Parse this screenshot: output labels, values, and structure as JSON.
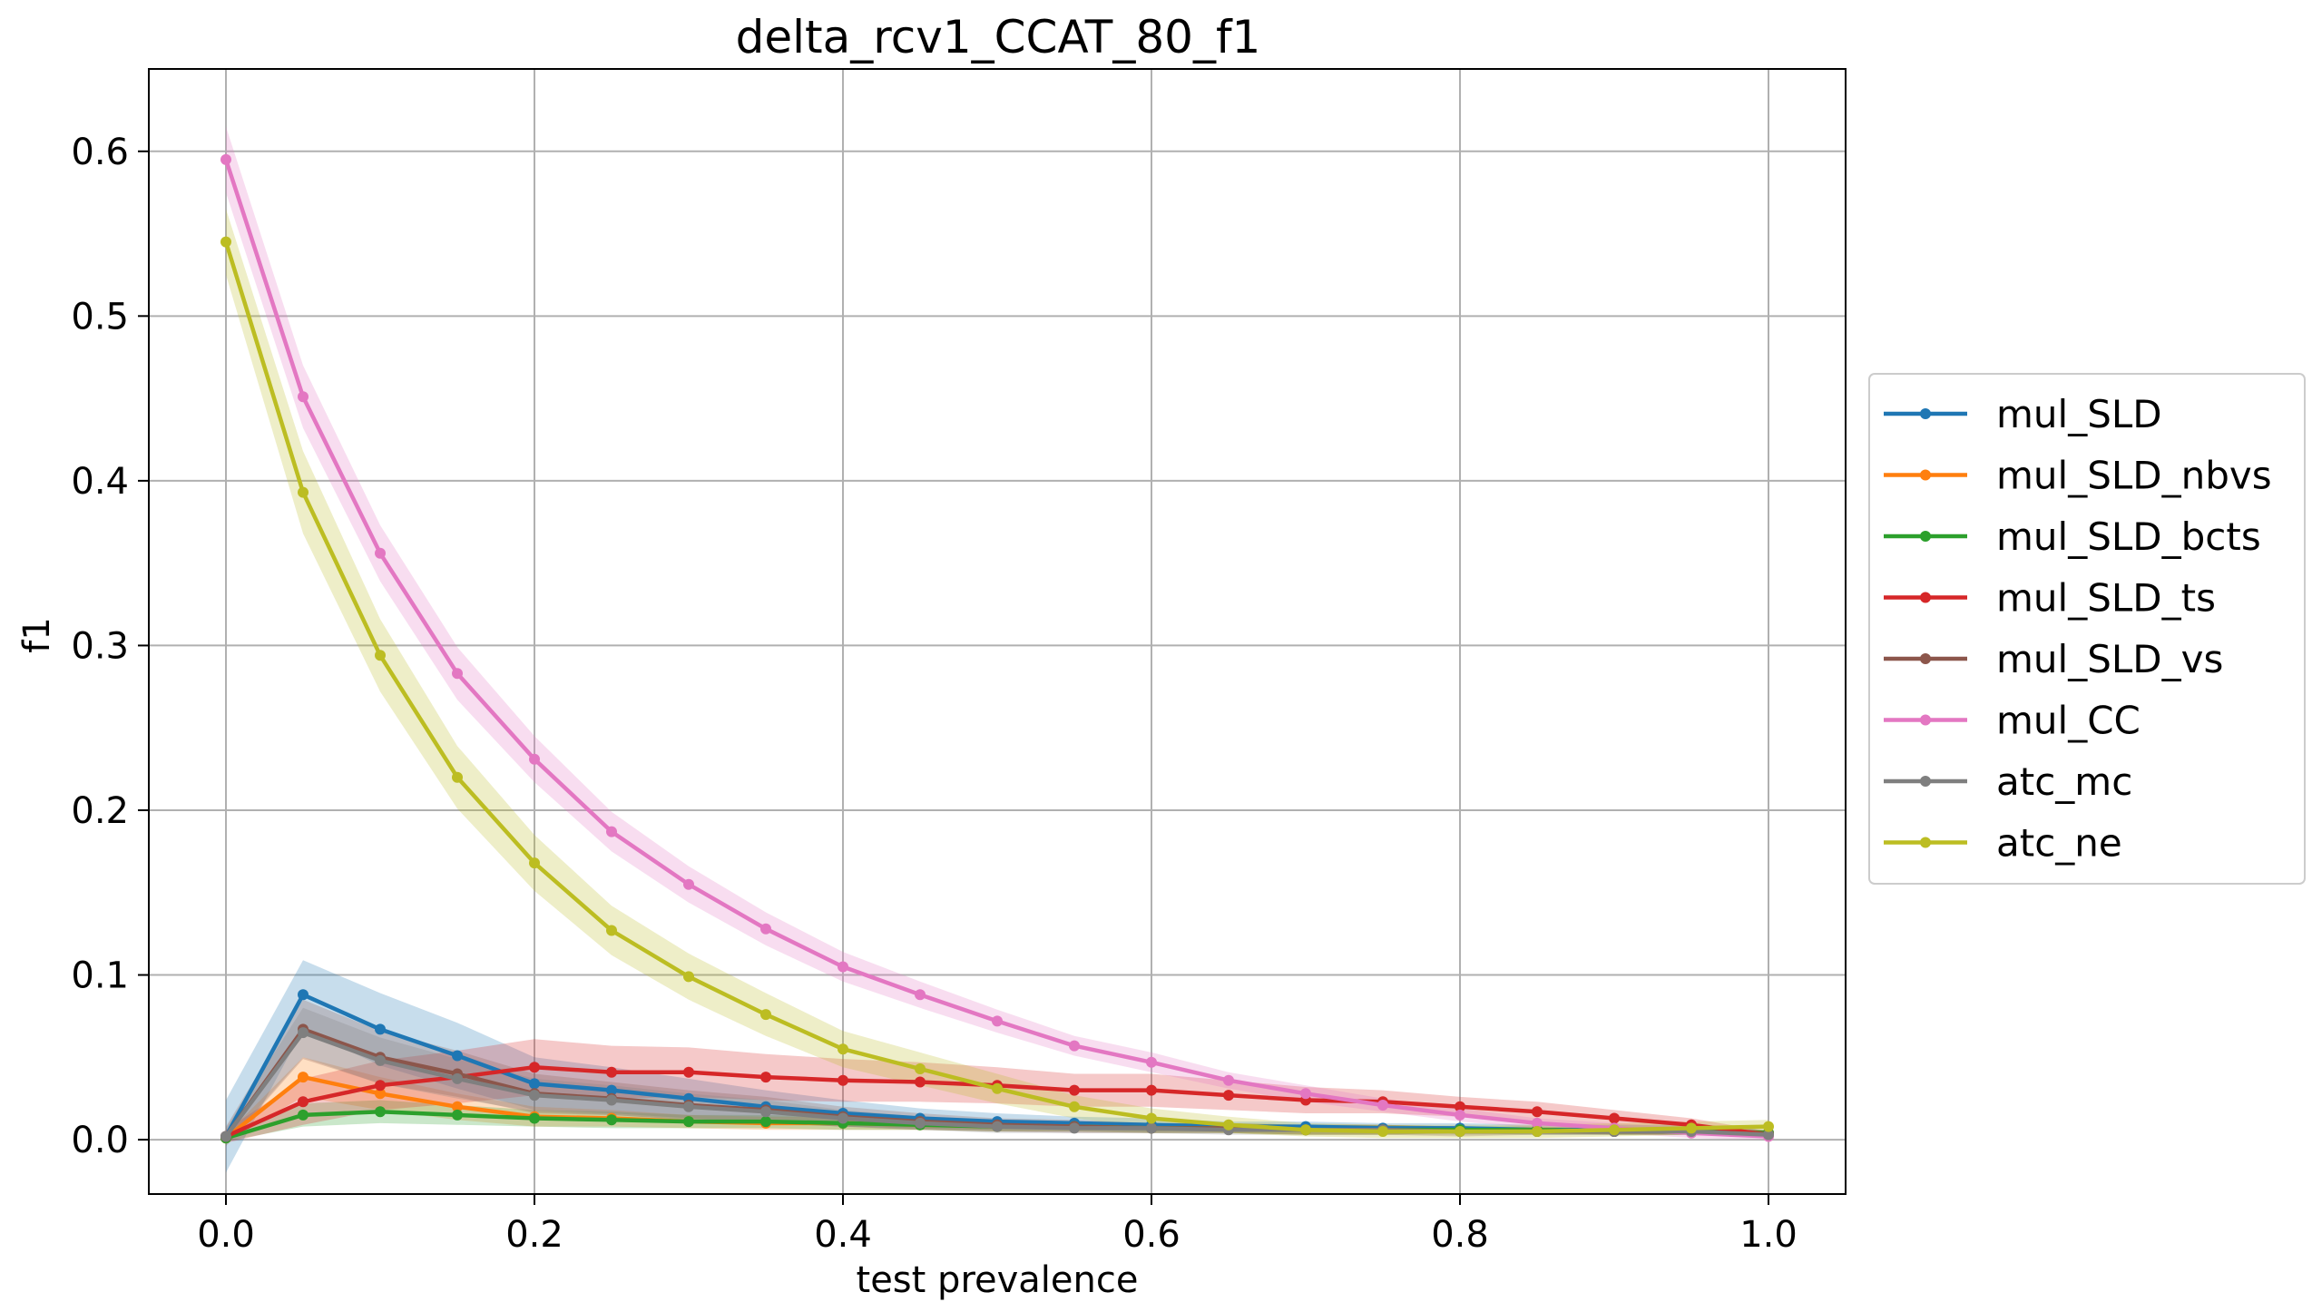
{
  "chart_data": {
    "type": "line",
    "title": "delta_rcv1_CCAT_80_f1",
    "xlabel": "test prevalence",
    "ylabel": "f1",
    "xlim": [
      -0.05,
      1.05
    ],
    "ylim": [
      -0.033,
      0.65
    ],
    "grid": true,
    "legend_position": "center-right, outside plot",
    "x_ticks": [
      "0.0",
      "0.2",
      "0.4",
      "0.6",
      "0.8",
      "1.0"
    ],
    "y_ticks": [
      "0.0",
      "0.1",
      "0.2",
      "0.3",
      "0.4",
      "0.5",
      "0.6"
    ],
    "x": [
      0.0,
      0.05,
      0.1,
      0.15,
      0.2,
      0.25,
      0.3,
      0.35,
      0.4,
      0.45,
      0.5,
      0.55,
      0.6,
      0.65,
      0.7,
      0.75,
      0.8,
      0.85,
      0.9,
      0.95,
      1.0
    ],
    "series": [
      {
        "name": "mul_SLD",
        "color": "#1f77b4",
        "values": [
          0.002,
          0.088,
          0.067,
          0.051,
          0.034,
          0.03,
          0.025,
          0.02,
          0.016,
          0.013,
          0.011,
          0.01,
          0.009,
          0.008,
          0.008,
          0.007,
          0.007,
          0.006,
          0.006,
          0.006,
          0.004
        ],
        "band": [
          0.022,
          0.021,
          0.022,
          0.02,
          0.016,
          0.014,
          0.012,
          0.01,
          0.008,
          0.006,
          0.005,
          0.004,
          0.004,
          0.003,
          0.003,
          0.003,
          0.003,
          0.003,
          0.003,
          0.003,
          0.002
        ]
      },
      {
        "name": "mul_SLD_nbvs",
        "color": "#ff7f0e",
        "values": [
          0.001,
          0.038,
          0.028,
          0.02,
          0.014,
          0.013,
          0.011,
          0.01,
          0.01,
          0.009,
          0.008,
          0.008,
          0.007,
          0.007,
          0.006,
          0.006,
          0.006,
          0.006,
          0.005,
          0.005,
          0.004
        ],
        "band": [
          0.002,
          0.012,
          0.01,
          0.008,
          0.006,
          0.005,
          0.004,
          0.004,
          0.004,
          0.003,
          0.003,
          0.003,
          0.003,
          0.003,
          0.003,
          0.003,
          0.002,
          0.002,
          0.002,
          0.002,
          0.002
        ]
      },
      {
        "name": "mul_SLD_bcts",
        "color": "#2ca02c",
        "values": [
          0.001,
          0.015,
          0.017,
          0.015,
          0.013,
          0.012,
          0.011,
          0.011,
          0.01,
          0.009,
          0.008,
          0.008,
          0.007,
          0.007,
          0.006,
          0.006,
          0.006,
          0.006,
          0.005,
          0.005,
          0.004
        ],
        "band": [
          0.002,
          0.007,
          0.007,
          0.006,
          0.005,
          0.005,
          0.004,
          0.004,
          0.004,
          0.003,
          0.003,
          0.003,
          0.003,
          0.003,
          0.003,
          0.003,
          0.002,
          0.002,
          0.002,
          0.002,
          0.002
        ]
      },
      {
        "name": "mul_SLD_ts",
        "color": "#d62728",
        "values": [
          0.002,
          0.023,
          0.033,
          0.038,
          0.044,
          0.041,
          0.041,
          0.038,
          0.036,
          0.035,
          0.033,
          0.03,
          0.03,
          0.027,
          0.024,
          0.023,
          0.02,
          0.017,
          0.013,
          0.009,
          0.003
        ],
        "band": [
          0.004,
          0.014,
          0.015,
          0.016,
          0.017,
          0.016,
          0.015,
          0.014,
          0.013,
          0.012,
          0.011,
          0.01,
          0.01,
          0.009,
          0.008,
          0.007,
          0.006,
          0.006,
          0.005,
          0.004,
          0.002
        ]
      },
      {
        "name": "mul_SLD_vs",
        "color": "#8c564b",
        "values": [
          0.002,
          0.067,
          0.05,
          0.04,
          0.028,
          0.025,
          0.021,
          0.018,
          0.014,
          0.011,
          0.009,
          0.008,
          0.007,
          0.007,
          0.006,
          0.006,
          0.005,
          0.005,
          0.005,
          0.005,
          0.003
        ],
        "band": [
          0.006,
          0.018,
          0.016,
          0.014,
          0.012,
          0.01,
          0.009,
          0.008,
          0.006,
          0.005,
          0.004,
          0.004,
          0.003,
          0.003,
          0.003,
          0.003,
          0.003,
          0.002,
          0.002,
          0.002,
          0.002
        ]
      },
      {
        "name": "mul_CC",
        "color": "#e377c2",
        "values": [
          0.595,
          0.451,
          0.356,
          0.283,
          0.231,
          0.187,
          0.155,
          0.128,
          0.105,
          0.088,
          0.072,
          0.057,
          0.047,
          0.036,
          0.028,
          0.021,
          0.015,
          0.01,
          0.007,
          0.004,
          0.002
        ],
        "band": [
          0.02,
          0.019,
          0.017,
          0.016,
          0.014,
          0.012,
          0.011,
          0.01,
          0.009,
          0.008,
          0.007,
          0.006,
          0.006,
          0.005,
          0.005,
          0.004,
          0.004,
          0.003,
          0.003,
          0.003,
          0.002
        ]
      },
      {
        "name": "atc_mc",
        "color": "#7f7f7f",
        "values": [
          0.002,
          0.065,
          0.048,
          0.037,
          0.027,
          0.024,
          0.02,
          0.017,
          0.013,
          0.01,
          0.008,
          0.007,
          0.007,
          0.006,
          0.006,
          0.006,
          0.005,
          0.005,
          0.005,
          0.005,
          0.003
        ],
        "band": [
          0.005,
          0.015,
          0.014,
          0.012,
          0.01,
          0.009,
          0.008,
          0.007,
          0.005,
          0.004,
          0.004,
          0.003,
          0.003,
          0.003,
          0.003,
          0.003,
          0.002,
          0.002,
          0.002,
          0.002,
          0.002
        ]
      },
      {
        "name": "atc_ne",
        "color": "#bcbd22",
        "values": [
          0.545,
          0.393,
          0.294,
          0.22,
          0.168,
          0.127,
          0.099,
          0.076,
          0.055,
          0.043,
          0.031,
          0.02,
          0.013,
          0.009,
          0.006,
          0.005,
          0.005,
          0.005,
          0.006,
          0.007,
          0.008
        ],
        "band": [
          0.02,
          0.025,
          0.022,
          0.019,
          0.017,
          0.015,
          0.014,
          0.013,
          0.011,
          0.01,
          0.009,
          0.007,
          0.006,
          0.005,
          0.004,
          0.004,
          0.004,
          0.004,
          0.004,
          0.004,
          0.004
        ]
      }
    ]
  }
}
